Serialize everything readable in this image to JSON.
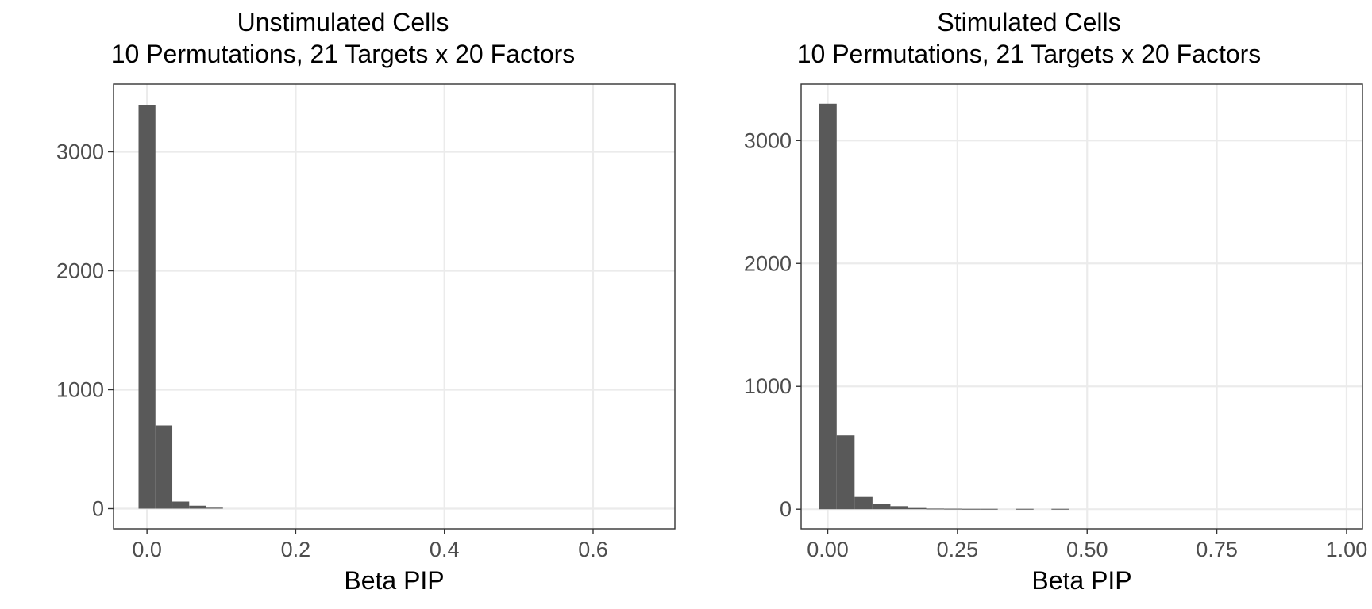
{
  "chart_data": [
    {
      "type": "bar",
      "title": "Unstimulated Cells",
      "subtitle": "10 Permutations, 21 Targets x 20 Factors",
      "xlabel": "Beta PIP",
      "ylabel": "",
      "xlim": [
        -0.045,
        0.71
      ],
      "ylim": [
        -170,
        3570
      ],
      "x_ticks": [
        0.0,
        0.2,
        0.4,
        0.6
      ],
      "x_tick_labels": [
        "0.0",
        "0.2",
        "0.4",
        "0.6"
      ],
      "y_ticks": [
        0,
        1000,
        2000,
        3000
      ],
      "y_tick_labels": [
        "0",
        "1000",
        "2000",
        "3000"
      ],
      "bin_width": 0.0227,
      "bin_centers": [
        0.0,
        0.0227,
        0.0454,
        0.0681,
        0.0908
      ],
      "values": [
        3390,
        700,
        60,
        25,
        8
      ],
      "grid": true,
      "bar_color": "#595959"
    },
    {
      "type": "bar",
      "title": "Stimulated Cells",
      "subtitle": "10 Permutations, 21 Targets x 20 Factors",
      "xlabel": "Beta PIP",
      "ylabel": "",
      "xlim": [
        -0.0513,
        1.0307
      ],
      "ylim": [
        -160,
        3460
      ],
      "x_ticks": [
        0.0,
        0.25,
        0.5,
        0.75,
        1.0
      ],
      "x_tick_labels": [
        "0.00",
        "0.25",
        "0.50",
        "0.75",
        "1.00"
      ],
      "y_ticks": [
        0,
        1000,
        2000,
        3000
      ],
      "y_tick_labels": [
        "0",
        "1000",
        "2000",
        "3000"
      ],
      "bin_width": 0.0345,
      "bin_centers": [
        0.0,
        0.0345,
        0.069,
        0.1035,
        0.138,
        0.1725,
        0.207,
        0.2415,
        0.276,
        0.3105,
        0.3795,
        0.4485
      ],
      "values": [
        3300,
        600,
        100,
        45,
        25,
        10,
        5,
        4,
        3,
        3,
        3,
        3
      ],
      "grid": true,
      "bar_color": "#595959"
    }
  ]
}
